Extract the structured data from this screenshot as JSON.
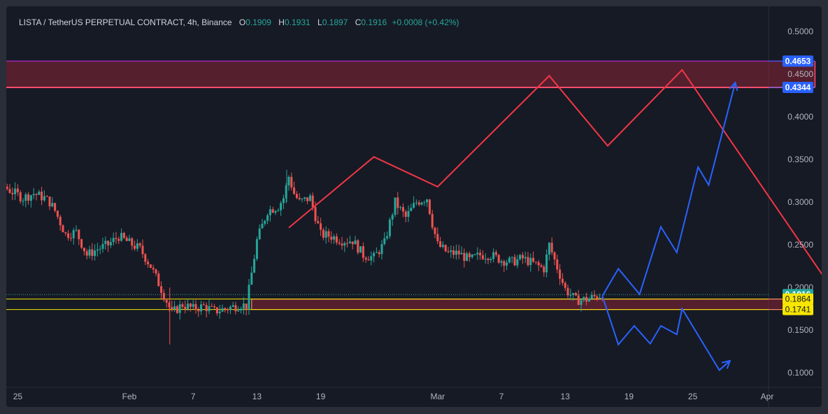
{
  "header": {
    "symbol": "LISTA / TetherUS PERPETUAL CONTRACT, 4h, Binance",
    "open_label": "O",
    "open": "0.1909",
    "high_label": "H",
    "high": "0.1931",
    "low_label": "L",
    "low": "0.1897",
    "close_label": "C",
    "close": "0.1916",
    "change": "+0.0008 (+0.42%)"
  },
  "colors": {
    "background": "#161a25",
    "up": "#26a69a",
    "down": "#ef5350",
    "red_path": "#f23645",
    "blue_path": "#2962ff",
    "zone_fill": "#8a2436",
    "yellow": "#f7e600"
  },
  "chart_data": {
    "type": "candlestick",
    "y_ticks": [
      "0.5000",
      "0.4500",
      "0.4000",
      "0.3500",
      "0.3000",
      "0.2500",
      "0.2000",
      "0.1500",
      "0.1000"
    ],
    "ylim": [
      0.085,
      0.53
    ],
    "x_ticks": [
      "25",
      "Feb",
      "7",
      "13",
      "19",
      "Mar",
      "7",
      "13",
      "19",
      "25",
      "Apr"
    ],
    "price_labels": [
      {
        "value": 0.4653,
        "text": "0.4653",
        "style": "blue"
      },
      {
        "value": 0.4344,
        "text": "0.4344",
        "style": "blue"
      },
      {
        "value": 0.1916,
        "text": "0.1916",
        "style": "green"
      },
      {
        "value": 0.1864,
        "text": "0.1864",
        "style": "yellow"
      },
      {
        "value": 0.1741,
        "text": "0.1741",
        "style": "yellow"
      }
    ],
    "current_price": 0.1916,
    "zones": [
      {
        "name": "resistance-zone",
        "from_day": 0,
        "to_day": 81.5,
        "top": 0.4653,
        "bottom": 0.4344
      },
      {
        "name": "support-zone",
        "from_day": 28.5,
        "to_day": 78.5,
        "top": 0.1864,
        "bottom": 0.1741
      }
    ],
    "projection_red": [
      [
        32,
        0.27
      ],
      [
        40,
        0.353
      ],
      [
        46,
        0.318
      ],
      [
        56.5,
        0.448
      ],
      [
        62,
        0.366
      ],
      [
        69,
        0.455
      ],
      [
        84,
        0.182
      ]
    ],
    "projection_blue_up": [
      [
        61.5,
        0.19
      ],
      [
        63,
        0.222
      ],
      [
        65,
        0.192
      ],
      [
        67,
        0.271
      ],
      [
        68.5,
        0.241
      ],
      [
        70.5,
        0.341
      ],
      [
        71.5,
        0.32
      ],
      [
        74,
        0.44
      ]
    ],
    "projection_blue_down": [
      [
        61.5,
        0.19
      ],
      [
        63,
        0.133
      ],
      [
        64.5,
        0.155
      ],
      [
        66,
        0.134
      ],
      [
        67,
        0.155
      ],
      [
        68.5,
        0.145
      ],
      [
        69,
        0.175
      ],
      [
        72.5,
        0.103
      ],
      [
        73.5,
        0.114
      ]
    ],
    "close_path": [
      [
        0,
        0.32
      ],
      [
        1,
        0.305
      ],
      [
        2,
        0.325
      ],
      [
        3,
        0.318
      ],
      [
        4,
        0.33
      ],
      [
        5,
        0.32
      ],
      [
        6,
        0.312
      ],
      [
        7,
        0.305
      ],
      [
        8,
        0.31
      ],
      [
        9,
        0.305
      ],
      [
        9.5,
        0.3
      ],
      [
        10,
        0.29
      ],
      [
        11,
        0.262
      ],
      [
        12,
        0.265
      ],
      [
        13,
        0.238
      ],
      [
        14,
        0.245
      ],
      [
        15,
        0.25
      ],
      [
        16,
        0.26
      ],
      [
        17,
        0.252
      ],
      [
        18,
        0.245
      ],
      [
        19,
        0.225
      ],
      [
        20,
        0.198
      ],
      [
        21,
        0.17
      ],
      [
        22,
        0.18
      ],
      [
        23,
        0.175
      ],
      [
        24,
        0.178
      ],
      [
        25,
        0.172
      ],
      [
        26,
        0.175
      ],
      [
        27,
        0.178
      ],
      [
        27.5,
        0.18
      ],
      [
        28,
        0.178
      ],
      [
        29,
        0.255
      ],
      [
        30,
        0.29
      ],
      [
        31,
        0.295
      ],
      [
        31.5,
        0.305
      ],
      [
        32,
        0.33
      ],
      [
        32.5,
        0.31
      ],
      [
        33,
        0.3
      ],
      [
        34,
        0.305
      ],
      [
        35,
        0.262
      ],
      [
        36,
        0.26
      ],
      [
        37,
        0.255
      ],
      [
        38,
        0.255
      ],
      [
        39,
        0.238
      ],
      [
        40,
        0.235
      ],
      [
        41,
        0.252
      ],
      [
        42,
        0.3
      ],
      [
        43,
        0.282
      ],
      [
        44,
        0.3
      ],
      [
        45,
        0.305
      ],
      [
        45.5,
        0.275
      ],
      [
        46,
        0.25
      ],
      [
        47,
        0.24
      ],
      [
        48,
        0.24
      ],
      [
        49,
        0.232
      ],
      [
        50,
        0.238
      ],
      [
        51,
        0.238
      ],
      [
        52,
        0.232
      ],
      [
        53,
        0.23
      ],
      [
        54,
        0.234
      ],
      [
        55,
        0.228
      ],
      [
        56,
        0.222
      ],
      [
        56.5,
        0.25
      ],
      [
        57,
        0.232
      ],
      [
        58,
        0.198
      ],
      [
        59,
        0.185
      ],
      [
        60,
        0.186
      ],
      [
        61,
        0.19
      ],
      [
        61.5,
        0.1916
      ]
    ]
  }
}
